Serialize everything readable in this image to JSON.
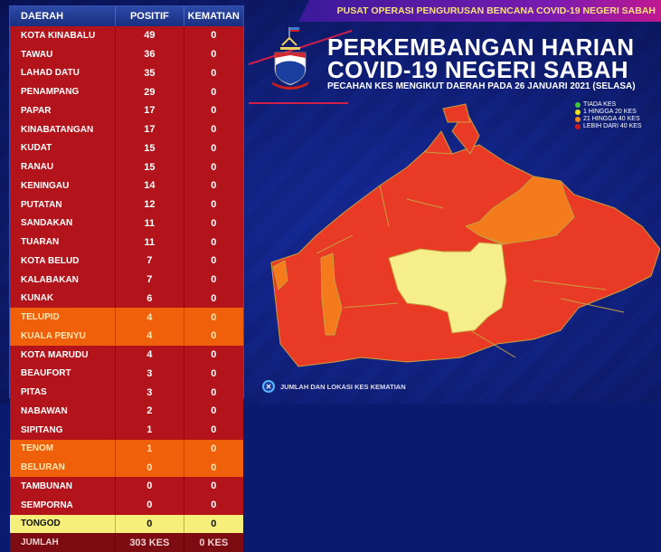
{
  "banner": {
    "text": "PUSAT OPERASI PENGURUSAN BENCANA COVID-19 NEGERI SABAH"
  },
  "header": {
    "title_line1": "PERKEMBANGAN HARIAN",
    "title_line2": "COVID-19 NEGERI SABAH",
    "subtitle": "PECAHAN KES MENGIKUT DAERAH PADA 26 JANUARI 2021 (SELASA)"
  },
  "table": {
    "headers": [
      "DAERAH",
      "POSITIF",
      "KEMATIAN"
    ],
    "rows": [
      {
        "daerah": "KOTA KINABALU",
        "positif": "49",
        "kematian": "0",
        "color": "red"
      },
      {
        "daerah": "TAWAU",
        "positif": "36",
        "kematian": "0",
        "color": "red"
      },
      {
        "daerah": "LAHAD DATU",
        "positif": "35",
        "kematian": "0",
        "color": "red"
      },
      {
        "daerah": "PENAMPANG",
        "positif": "29",
        "kematian": "0",
        "color": "red"
      },
      {
        "daerah": "PAPAR",
        "positif": "17",
        "kematian": "0",
        "color": "red"
      },
      {
        "daerah": "KINABATANGAN",
        "positif": "17",
        "kematian": "0",
        "color": "red"
      },
      {
        "daerah": "KUDAT",
        "positif": "15",
        "kematian": "0",
        "color": "red"
      },
      {
        "daerah": "RANAU",
        "positif": "15",
        "kematian": "0",
        "color": "red"
      },
      {
        "daerah": "KENINGAU",
        "positif": "14",
        "kematian": "0",
        "color": "red"
      },
      {
        "daerah": "PUTATAN",
        "positif": "12",
        "kematian": "0",
        "color": "red"
      },
      {
        "daerah": "SANDAKAN",
        "positif": "11",
        "kematian": "0",
        "color": "red"
      },
      {
        "daerah": "TUARAN",
        "positif": "11",
        "kematian": "0",
        "color": "red"
      },
      {
        "daerah": "KOTA BELUD",
        "positif": "7",
        "kematian": "0",
        "color": "red"
      },
      {
        "daerah": "KALABAKAN",
        "positif": "7",
        "kematian": "0",
        "color": "red"
      },
      {
        "daerah": "KUNAK",
        "positif": "6",
        "kematian": "0",
        "color": "red"
      },
      {
        "daerah": "TELUPID",
        "positif": "4",
        "kematian": "0",
        "color": "orange"
      },
      {
        "daerah": "KUALA PENYU",
        "positif": "4",
        "kematian": "0",
        "color": "orange"
      },
      {
        "daerah": "KOTA MARUDU",
        "positif": "4",
        "kematian": "0",
        "color": "red"
      },
      {
        "daerah": "BEAUFORT",
        "positif": "3",
        "kematian": "0",
        "color": "red"
      },
      {
        "daerah": "PITAS",
        "positif": "3",
        "kematian": "0",
        "color": "red"
      },
      {
        "daerah": "NABAWAN",
        "positif": "2",
        "kematian": "0",
        "color": "red"
      },
      {
        "daerah": "SIPITANG",
        "positif": "1",
        "kematian": "0",
        "color": "red"
      },
      {
        "daerah": "TENOM",
        "positif": "1",
        "kematian": "0",
        "color": "orange"
      },
      {
        "daerah": "BELURAN",
        "positif": "0",
        "kematian": "0",
        "color": "orange"
      },
      {
        "daerah": "TAMBUNAN",
        "positif": "0",
        "kematian": "0",
        "color": "red"
      },
      {
        "daerah": "SEMPORNA",
        "positif": "0",
        "kematian": "0",
        "color": "red"
      },
      {
        "daerah": "TONGOD",
        "positif": "0",
        "kematian": "0",
        "color": "yellow"
      }
    ],
    "total": {
      "label": "JUMLAH",
      "positif": "303 KES",
      "kematian": "0 KES"
    }
  },
  "legend": [
    {
      "label": "TIADA KES",
      "color": "#3ec83a"
    },
    {
      "label": "1 HINGGA 20 KES",
      "color": "#f2e21c"
    },
    {
      "label": "21 HINGGA 40 KES",
      "color": "#f4861a"
    },
    {
      "label": "LEBIH DARI 40 KES",
      "color": "#d01818"
    }
  ],
  "footer": {
    "icon": "x-circle-icon",
    "label": "JUMLAH DAN LOKASI KES KEMATIAN"
  }
}
